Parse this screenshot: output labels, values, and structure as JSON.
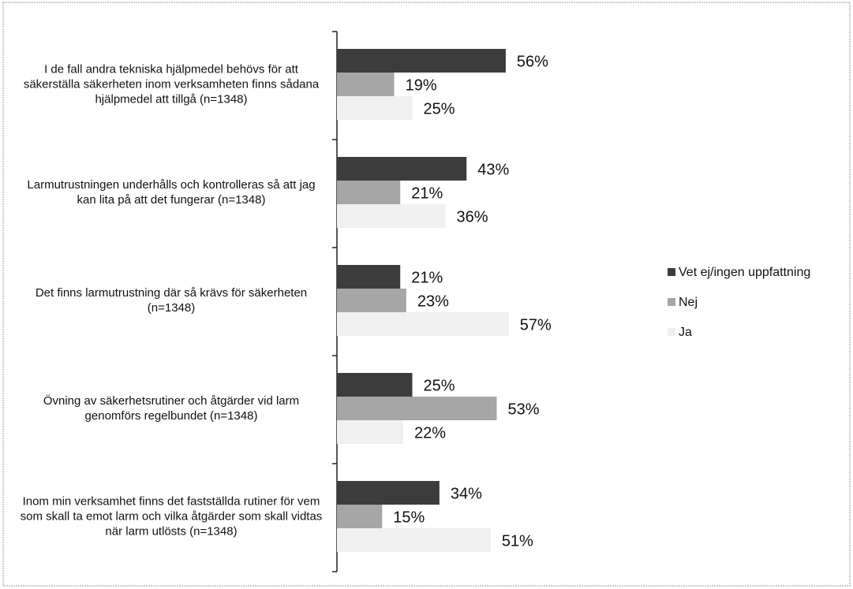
{
  "chart_data": {
    "type": "bar",
    "orientation": "horizontal",
    "categories": [
      "I de fall andra tekniska hjälpmedel behövs för att säkerställa säkerheten inom verksamheten finns sådana hjälpmedel att tillgå (n=1348)",
      "Larmutrustningen underhålls och kontrolleras så att jag kan lita på att det fungerar (n=1348)",
      "Det finns larmutrustning där så krävs för säkerheten (n=1348)",
      "Övning av säkerhetsrutiner och åtgärder vid larm genomförs regelbundet (n=1348)",
      "Inom min verksamhet finns det fastställda rutiner för vem som skall ta emot larm och vilka åtgärder som skall vidtas när larm utlösts (n=1348)"
    ],
    "series": [
      {
        "name": "Vet ej/ingen uppfattning",
        "color": "#3c3c3c",
        "values": [
          56,
          43,
          21,
          25,
          34
        ],
        "value_labels": [
          "56%",
          "43%",
          "21%",
          "25%",
          "34%"
        ]
      },
      {
        "name": "Nej",
        "color": "#a6a6a6",
        "values": [
          19,
          21,
          23,
          53,
          15
        ],
        "value_labels": [
          "19%",
          "21%",
          "23%",
          "53%",
          "15%"
        ]
      },
      {
        "name": "Ja",
        "color": "#f0f0f0",
        "values": [
          25,
          36,
          57,
          22,
          51
        ],
        "value_labels": [
          "25%",
          "36%",
          "57%",
          "22%",
          "51%"
        ]
      }
    ],
    "legend": "right"
  }
}
